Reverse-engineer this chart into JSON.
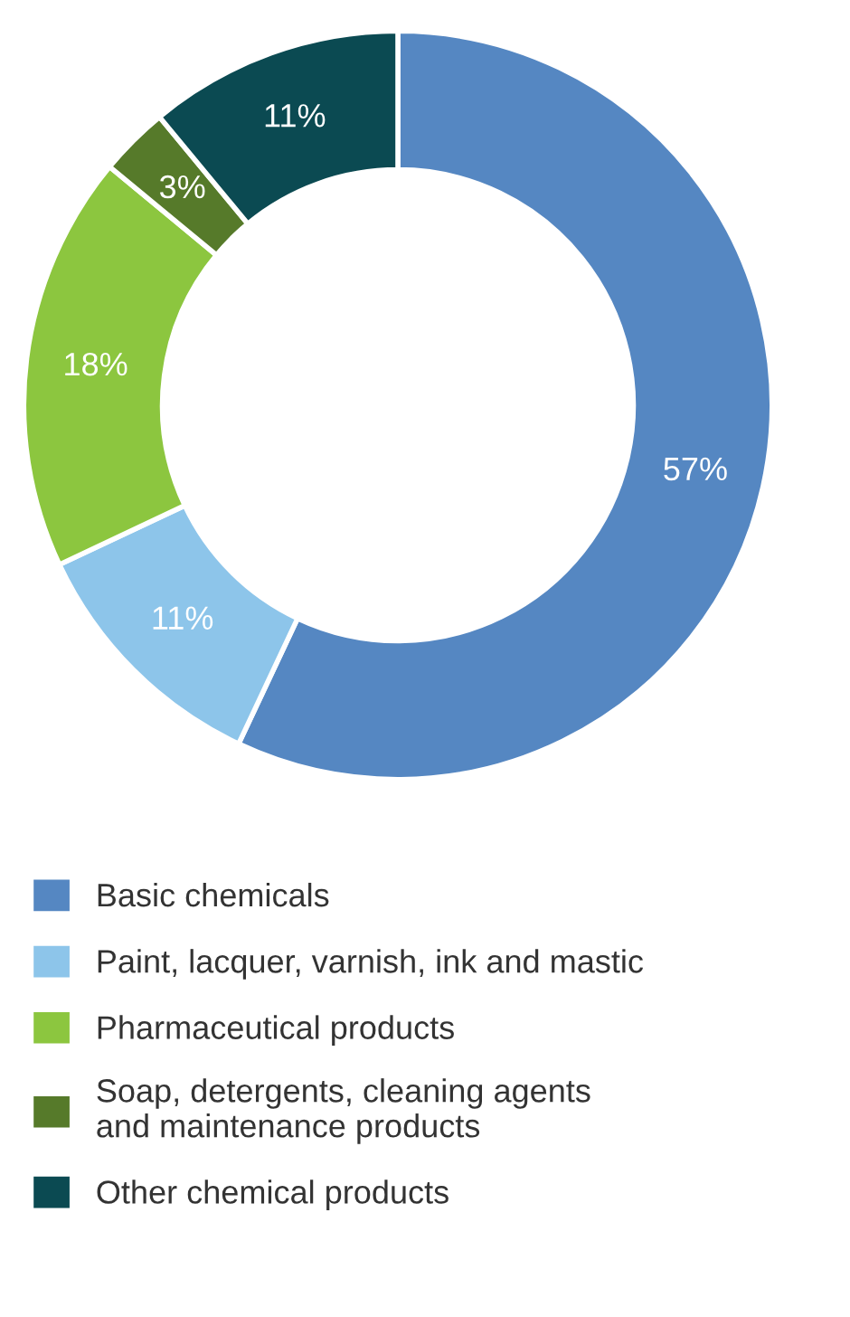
{
  "chart_data": {
    "type": "donut",
    "categories": [
      "Basic chemicals",
      "Paint, lacquer, varnish, ink and mastic",
      "Pharmaceutical products",
      "Soap, detergents, cleaning agents\nand maintenance products",
      "Other chemical products"
    ],
    "values": [
      57,
      11,
      18,
      3,
      11
    ],
    "colors": [
      "#5587c2",
      "#8dc5ea",
      "#8cc63f",
      "#567a2a",
      "#0b4a52"
    ],
    "value_labels": [
      "57%",
      "11%",
      "18%",
      "3%",
      "11%"
    ],
    "legend": "bottom"
  }
}
